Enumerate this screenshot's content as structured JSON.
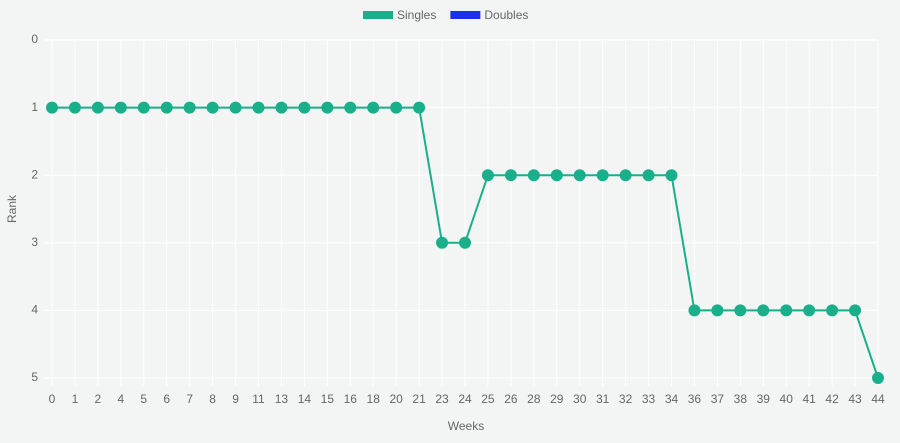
{
  "chart_data": {
    "type": "line",
    "x_label": "Weeks",
    "y_label": "Rank",
    "categories": [
      0,
      1,
      2,
      4,
      5,
      6,
      7,
      8,
      9,
      11,
      13,
      14,
      15,
      16,
      18,
      20,
      21,
      23,
      24,
      25,
      26,
      28,
      29,
      30,
      31,
      32,
      33,
      34,
      36,
      37,
      38,
      39,
      40,
      41,
      42,
      43,
      44
    ],
    "series": [
      {
        "name": "Singles",
        "color": "#1aaf8b",
        "values": [
          1,
          1,
          1,
          1,
          1,
          1,
          1,
          1,
          1,
          1,
          1,
          1,
          1,
          1,
          1,
          1,
          1,
          3,
          3,
          2,
          2,
          2,
          2,
          2,
          2,
          2,
          2,
          2,
          4,
          4,
          4,
          4,
          4,
          4,
          4,
          4,
          5
        ]
      },
      {
        "name": "Doubles",
        "color": "#1a2ff0",
        "values": [
          null,
          null,
          null,
          null,
          null,
          null,
          null,
          null,
          null,
          null,
          null,
          null,
          null,
          null,
          null,
          null,
          null,
          null,
          null,
          null,
          null,
          null,
          null,
          null,
          null,
          null,
          null,
          null,
          null,
          null,
          null,
          null,
          null,
          null,
          null,
          null,
          null
        ]
      }
    ],
    "ylim": [
      0,
      5
    ],
    "yticks": [
      0,
      1,
      2,
      3,
      4,
      5
    ],
    "y_reversed": true,
    "grid": true
  }
}
